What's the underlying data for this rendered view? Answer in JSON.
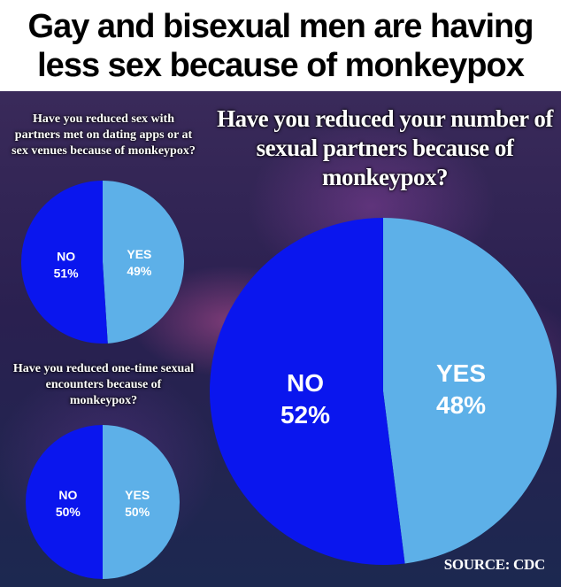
{
  "headline": {
    "line1": "Gay and bisexual men are having",
    "line2": "less sex because of monkeypox"
  },
  "source": "SOURCE: CDC",
  "colors": {
    "no": "#0a16ee",
    "yes": "#5db0e8"
  },
  "chart_data": [
    {
      "type": "pie",
      "title": "Have you reduced your number of sexual partners because of monkeypox?",
      "slices": [
        {
          "label": "NO",
          "value": 52,
          "display": "52%"
        },
        {
          "label": "YES",
          "value": 48,
          "display": "48%"
        }
      ]
    },
    {
      "type": "pie",
      "title": "Have you reduced sex with partners met on dating apps or at sex venues because of monkeypox?",
      "slices": [
        {
          "label": "NO",
          "value": 51,
          "display": "51%"
        },
        {
          "label": "YES",
          "value": 49,
          "display": "49%"
        }
      ]
    },
    {
      "type": "pie",
      "title": "Have you reduced one-time sexual encounters because of monkeypox?",
      "slices": [
        {
          "label": "NO",
          "value": 50,
          "display": "50%"
        },
        {
          "label": "YES",
          "value": 50,
          "display": "50%"
        }
      ]
    }
  ]
}
